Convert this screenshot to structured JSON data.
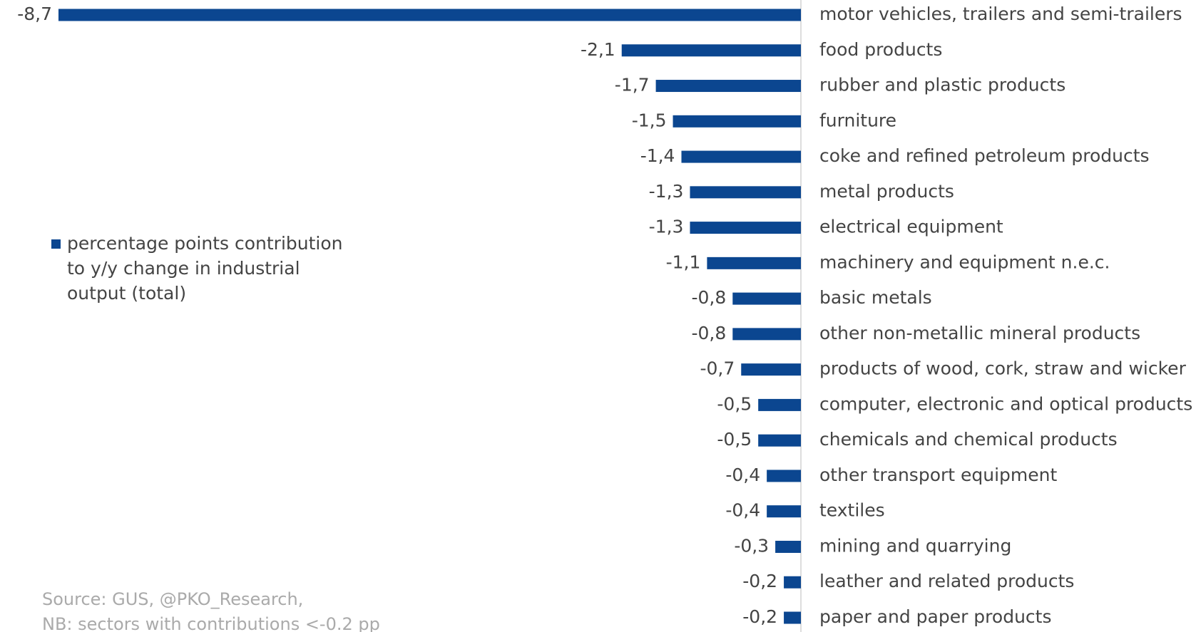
{
  "chart_data": {
    "type": "bar",
    "categories": [
      "motor vehicles, trailers and semi-trailers",
      "food products",
      "rubber and plastic products",
      "furniture",
      "coke and refined petroleum products",
      "metal products",
      "electrical equipment",
      "machinery and equipment n.e.c.",
      "basic metals",
      "other non-metallic mineral products",
      "products of wood, cork, straw and wicker",
      "computer, electronic and optical products",
      "chemicals and chemical products",
      "other transport equipment",
      "textiles",
      "mining and quarrying",
      "leather and related products",
      "paper and paper products"
    ],
    "series": [
      {
        "name": "percentage points contribution to y/y change in industrial output (total)",
        "color": "#0b4690",
        "values": [
          -8.7,
          -2.1,
          -1.7,
          -1.5,
          -1.4,
          -1.3,
          -1.3,
          -1.1,
          -0.8,
          -0.8,
          -0.7,
          -0.5,
          -0.5,
          -0.4,
          -0.4,
          -0.3,
          -0.2,
          -0.2
        ],
        "value_labels": [
          "-8,7",
          "-2,1",
          "-1,7",
          "-1,5",
          "-1,4",
          "-1,3",
          "-1,3",
          "-1,1",
          "-0,8",
          "-0,8",
          "-0,7",
          "-0,5",
          "-0,5",
          "-0,4",
          "-0,4",
          "-0,3",
          "-0,2",
          "-0,2"
        ]
      }
    ],
    "source": [
      "Source: GUS, @PKO_Research,",
      "NB: sectors with contributions <-0.2 pp"
    ]
  }
}
